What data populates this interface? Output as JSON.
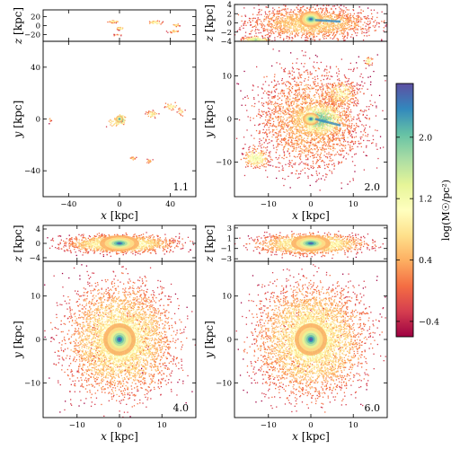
{
  "chart_data": {
    "type": "heatmap",
    "title": "",
    "colormap": [
      "#9e0142",
      "#d53e4f",
      "#f46d43",
      "#fdae61",
      "#fee08b",
      "#ffffbf",
      "#e6f598",
      "#abdda4",
      "#66c2a5",
      "#3288bd",
      "#5e4fa2"
    ],
    "colorbar": {
      "label": "log(M☉/pc²)",
      "range": [
        -0.6,
        2.7
      ],
      "ticks": [
        -0.4,
        0.4,
        1.2,
        2.0
      ],
      "tick_labels": [
        "−0.4",
        "0.4",
        "1.2",
        "2.0"
      ]
    },
    "panels": [
      {
        "id": "1.1",
        "label": "1.1",
        "face_on": {
          "xlabel": "x [kpc]",
          "ylabel": "y [kpc]",
          "xlim": [
            -60,
            60
          ],
          "ylim": [
            -60,
            60
          ],
          "xticks": [
            -40,
            0,
            40
          ],
          "xtick_labels": [
            "−40",
            "0",
            "40"
          ],
          "yticks": [
            -40,
            0,
            40
          ],
          "ytick_labels": [
            "−40",
            "0",
            "40"
          ]
        },
        "edge_on": {
          "ylabel": "z [kpc]",
          "ylim": [
            -35,
            35
          ],
          "yticks": [
            -20,
            0,
            20
          ],
          "ytick_labels": [
            "−20",
            "0",
            "20"
          ]
        }
      },
      {
        "id": "2.0",
        "label": "2.0",
        "face_on": {
          "xlabel": "x [kpc]",
          "ylabel": "y [kpc]",
          "xlim": [
            -18,
            18
          ],
          "ylim": [
            -18,
            18
          ],
          "xticks": [
            -10,
            0,
            10
          ],
          "xtick_labels": [
            "−10",
            "0",
            "10"
          ],
          "yticks": [
            -10,
            0,
            10
          ],
          "ytick_labels": [
            "−10",
            "0",
            "10"
          ]
        },
        "edge_on": {
          "ylabel": "z [kpc]",
          "ylim": [
            -4,
            4
          ],
          "yticks": [
            -4,
            -2,
            0,
            2,
            4
          ],
          "ytick_labels": [
            "−4",
            "−2",
            "0",
            "2",
            "4"
          ]
        }
      },
      {
        "id": "4.0",
        "label": "4.0",
        "face_on": {
          "xlabel": "x [kpc]",
          "ylabel": "y [kpc]",
          "xlim": [
            -18,
            18
          ],
          "ylim": [
            -18,
            18
          ],
          "xticks": [
            -10,
            0,
            10
          ],
          "xtick_labels": [
            "−10",
            "0",
            "10"
          ],
          "yticks": [
            -10,
            0,
            10
          ],
          "ytick_labels": [
            "−10",
            "0",
            "10"
          ]
        },
        "edge_on": {
          "ylabel": "z [kpc]",
          "ylim": [
            -5,
            5
          ],
          "yticks": [
            -4,
            0,
            4
          ],
          "ytick_labels": [
            "−4",
            "0",
            "4"
          ]
        }
      },
      {
        "id": "6.0",
        "label": "6.0",
        "face_on": {
          "xlabel": "x [kpc]",
          "ylabel": "y [kpc]",
          "xlim": [
            -18,
            18
          ],
          "ylim": [
            -18,
            18
          ],
          "xticks": [
            -10,
            0,
            10
          ],
          "xtick_labels": [
            "−10",
            "0",
            "10"
          ],
          "yticks": [
            -10,
            0,
            10
          ],
          "ytick_labels": [
            "−10",
            "0",
            "10"
          ]
        },
        "edge_on": {
          "ylabel": "z [kpc]",
          "ylim": [
            -3.5,
            3.5
          ],
          "yticks": [
            -3,
            -1,
            1,
            3
          ],
          "ytick_labels": [
            "−3",
            "−1",
            "1",
            "3"
          ]
        }
      }
    ]
  }
}
